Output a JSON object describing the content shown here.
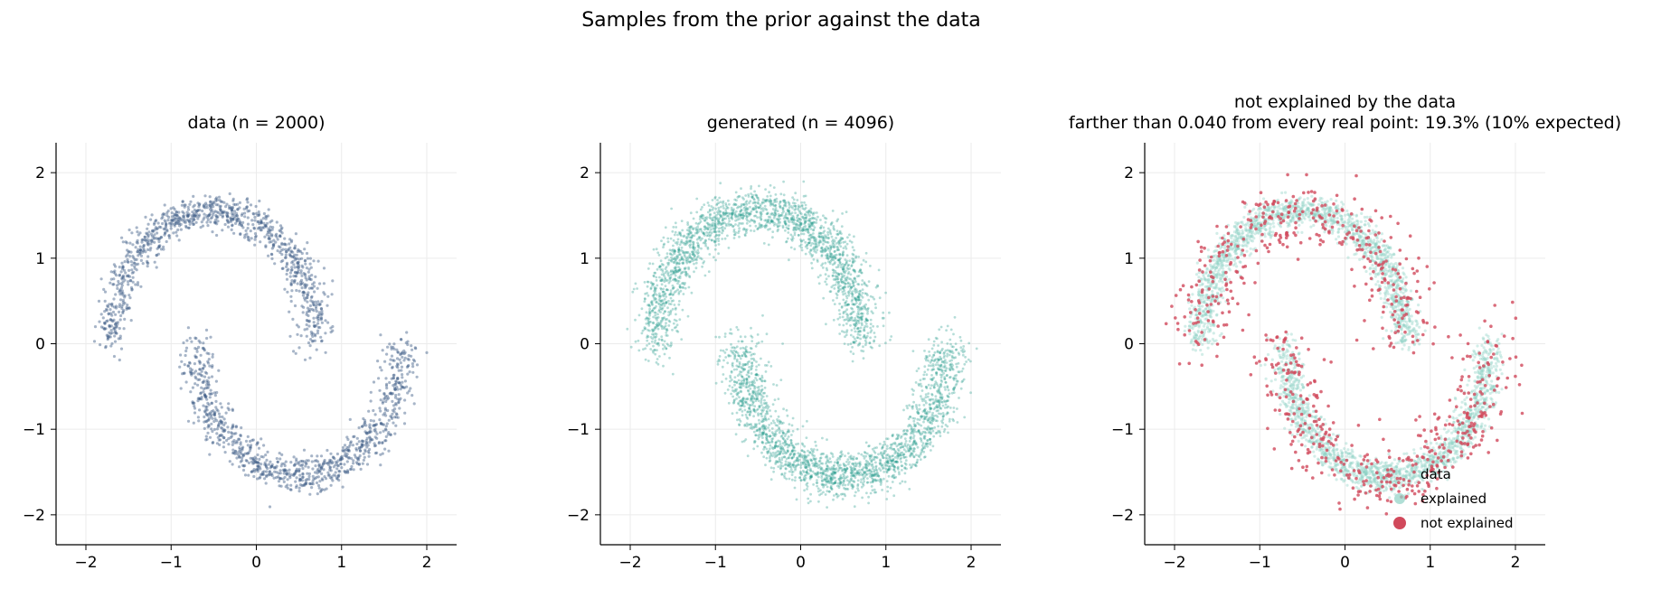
{
  "figure": {
    "suptitle": "Samples from the prior against the data"
  },
  "colors": {
    "data": "#3b5b86",
    "generated": "#2a9d8f",
    "explained": "#8fd1c5",
    "not_explained": "#d1495b",
    "grid": "#ebebeb",
    "axis": "#000000"
  },
  "panels": [
    {
      "id": "data",
      "title_lines": [
        "data (n = 2000)"
      ],
      "series": "data"
    },
    {
      "id": "generated",
      "title_lines": [
        "generated (n = 4096)"
      ],
      "series": "generated"
    },
    {
      "id": "diagnostic",
      "title_lines": [
        "not explained by the data",
        "farther than 0.040 from every real point: 19.3% (10% expected)"
      ],
      "series": "diagnostic",
      "legend": {
        "placement": "lower-right",
        "entries": [
          "data",
          "explained",
          "not explained"
        ]
      }
    }
  ],
  "chart_data": [
    {
      "type": "scatter",
      "title": "data (n = 2000)",
      "xlim": [
        -2.35,
        2.35
      ],
      "ylim": [
        -2.35,
        2.35
      ],
      "xticks": [
        -2,
        -1,
        0,
        1,
        2
      ],
      "yticks": [
        -2,
        -1,
        0,
        1,
        2
      ],
      "grid": true,
      "n_points": 2000,
      "series": [
        {
          "shape": "two interleaving half-moons",
          "upper_moon": {
            "center": [
              -0.5,
              0.0
            ],
            "radius": 1.55,
            "angle_deg": [
              0,
              180
            ]
          },
          "lower_moon": {
            "center": [
              0.5,
              0.0
            ],
            "radius": 1.55,
            "angle_deg": [
              180,
              360
            ]
          },
          "noise_sd": 0.1
        }
      ]
    },
    {
      "type": "scatter",
      "title": "generated (n = 4096)",
      "xlim": [
        -2.35,
        2.35
      ],
      "ylim": [
        -2.35,
        2.35
      ],
      "xticks": [
        -2,
        -1,
        0,
        1,
        2
      ],
      "yticks": [
        -2,
        -1,
        0,
        1,
        2
      ],
      "grid": true,
      "n_points": 4096,
      "series": [
        {
          "shape": "two interleaving half-moons",
          "upper_moon": {
            "center": [
              -0.5,
              0.0
            ],
            "radius": 1.55,
            "angle_deg": [
              0,
              180
            ]
          },
          "lower_moon": {
            "center": [
              0.5,
              0.0
            ],
            "radius": 1.55,
            "angle_deg": [
              180,
              360
            ]
          },
          "noise_sd": 0.13
        }
      ]
    },
    {
      "type": "scatter",
      "title": "not explained by the data\nfarther than 0.040 from every real point: 19.3% (10% expected)",
      "xlim": [
        -2.35,
        2.35
      ],
      "ylim": [
        -2.35,
        2.35
      ],
      "xticks": [
        -2,
        -1,
        0,
        1,
        2
      ],
      "yticks": [
        -2,
        -1,
        0,
        1,
        2
      ],
      "grid": true,
      "not_explained_fraction": 0.193,
      "expected_fraction": 0.1,
      "distance_threshold": 0.04,
      "series": [
        {
          "name": "explained",
          "shape": "two interleaving half-moons",
          "noise_sd": 0.09
        },
        {
          "name": "not explained",
          "shape": "scattered around both moons",
          "noise_sd": 0.2
        }
      ],
      "legend": {
        "placement": "lower-right",
        "entries": [
          "data",
          "explained",
          "not explained"
        ]
      }
    }
  ]
}
